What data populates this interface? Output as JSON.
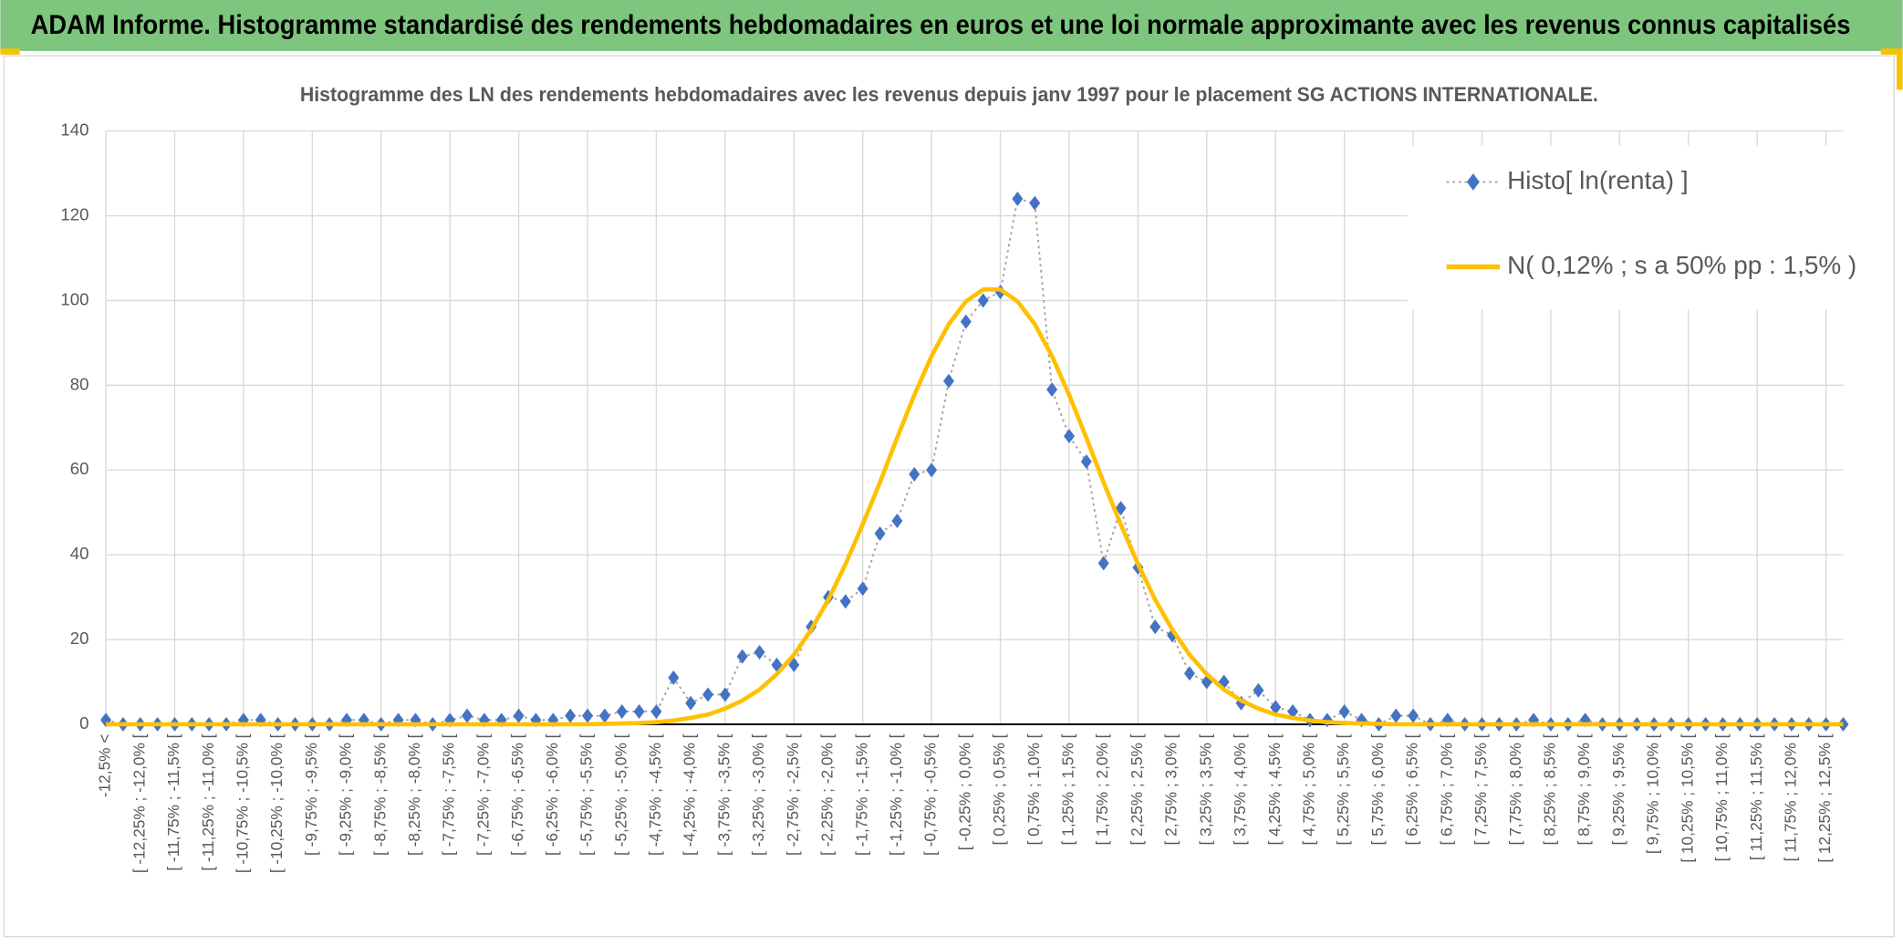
{
  "header": {
    "title": "ADAM Informe. Histogramme standardisé des rendements hebdomadaires en euros et une loi normale approximante avec les revenus connus capitalisés"
  },
  "chart_data": {
    "type": "line",
    "title": "Histogramme des LN des rendements hebdomadaires avec les revenus depuis janv 1997 pour le placement SG ACTIONS INTERNATIONALE.",
    "categories": [
      "-12,5% <",
      null,
      "[ -12,25% ; -12,0% [",
      null,
      "[ -11,75% ; -11,5% [",
      null,
      "[ -11,25% ; -11,0% [",
      null,
      "[ -10,75% ; -10,5% [",
      null,
      "[ -10,25% ; -10,0% [",
      null,
      "[ -9,75% ; -9,5% [",
      null,
      "[ -9,25% ; -9,0% [",
      null,
      "[ -8,75% ; -8,5% [",
      null,
      "[ -8,25% ; -8,0% [",
      null,
      "[ -7,75% ; -7,5% [",
      null,
      "[ -7,25% ; -7,0% [",
      null,
      "[ -6,75% ; -6,5% [",
      null,
      "[ -6,25% ; -6,0% [",
      null,
      "[ -5,75% ; -5,5% [",
      null,
      "[ -5,25% ; -5,0% [",
      null,
      "[ -4,75% ; -4,5% [",
      null,
      "[ -4,25% ; -4,0% [",
      null,
      "[ -3,75% ; -3,5% [",
      null,
      "[ -3,25% ; -3,0% [",
      null,
      "[ -2,75% ; -2,5% [",
      null,
      "[ -2,25% ; -2,0% [",
      null,
      "[ -1,75% ; -1,5% [",
      null,
      "[ -1,25% ; -1,0% [",
      null,
      "[ -0,75% ; -0,5% [",
      null,
      "[ -0,25% ; 0,0% [",
      null,
      "[ 0,25% ; 0,5% [",
      null,
      "[ 0,75% ; 1,0% [",
      null,
      "[ 1,25% ; 1,5% [",
      null,
      "[ 1,75% ; 2,0% [",
      null,
      "[ 2,25% ; 2,5% [",
      null,
      "[ 2,75% ; 3,0% [",
      null,
      "[ 3,25% ; 3,5% [",
      null,
      "[ 3,75% ; 4,0% [",
      null,
      "[ 4,25% ; 4,5% [",
      null,
      "[ 4,75% ; 5,0% [",
      null,
      "[ 5,25% ; 5,5% [",
      null,
      "[ 5,75% ; 6,0% [",
      null,
      "[ 6,25% ; 6,5% [",
      null,
      "[ 6,75% ; 7,0% [",
      null,
      "[ 7,25% ; 7,5% [",
      null,
      "[ 7,75% ; 8,0% [",
      null,
      "[ 8,25% ; 8,5% [",
      null,
      "[ 8,75% ; 9,0% [",
      null,
      "[ 9,25% ; 9,5% [",
      null,
      "[ 9,75% ; 10,0% [",
      null,
      "[ 10,25% ; 10,5% [",
      null,
      "[ 10,75% ; 11,0% [",
      null,
      "[ 11,25% ; 11,5% [",
      null,
      "[ 11,75% ; 12,0% [",
      null,
      "[ 12,25% ; 12,5% [",
      null
    ],
    "series": [
      {
        "name": "Histo[ ln(renta) ]",
        "color": "#4472c4",
        "line_color": "#a5a5a5",
        "values": [
          1,
          0,
          0,
          0,
          0,
          0,
          0,
          0,
          1,
          1,
          0,
          0,
          0,
          0,
          1,
          1,
          0,
          1,
          1,
          0,
          1,
          2,
          1,
          1,
          2,
          1,
          1,
          2,
          2,
          2,
          3,
          3,
          3,
          11,
          5,
          7,
          7,
          16,
          17,
          14,
          14,
          23,
          30,
          29,
          32,
          45,
          48,
          59,
          60,
          81,
          95,
          100,
          102,
          124,
          123,
          79,
          68,
          62,
          38,
          51,
          37,
          23,
          21,
          12,
          10,
          10,
          5,
          8,
          4,
          3,
          1,
          1,
          3,
          1,
          0,
          2,
          2,
          0,
          1,
          0,
          0,
          0,
          0,
          1,
          0,
          0,
          1,
          0,
          0,
          0,
          0,
          0,
          0,
          0,
          0,
          0,
          0,
          0,
          0,
          0,
          0,
          0
        ]
      },
      {
        "name": "N( 0,12% ; s a 50% pp : 1,5% )",
        "color": "#ffc000",
        "values": [
          0,
          0,
          0,
          0,
          0,
          0,
          0,
          0,
          0,
          0,
          0,
          0,
          0,
          0,
          0,
          0,
          0,
          0,
          0,
          0,
          0,
          0,
          0,
          0,
          0,
          0,
          0,
          0,
          0,
          0.1,
          0.2,
          0.3,
          0.5,
          0.9,
          1.5,
          2.3,
          3.7,
          5.6,
          8.2,
          11.8,
          16.4,
          22.3,
          29.4,
          37.8,
          47.2,
          57.1,
          67.6,
          77.7,
          86.9,
          94.4,
          99.8,
          102.6,
          102.6,
          99.8,
          94.4,
          86.9,
          77.7,
          67.6,
          57.1,
          47.2,
          37.8,
          29.4,
          22.3,
          16.4,
          11.8,
          8.2,
          5.6,
          3.7,
          2.3,
          1.5,
          0.9,
          0.5,
          0.3,
          0.2,
          0.1,
          0,
          0,
          0,
          0,
          0,
          0,
          0,
          0,
          0,
          0,
          0,
          0,
          0,
          0,
          0,
          0,
          0,
          0,
          0,
          0,
          0,
          0,
          0,
          0,
          0,
          0,
          0
        ]
      }
    ],
    "ylim": [
      0,
      140
    ],
    "yticks": [
      0,
      20,
      40,
      60,
      80,
      100,
      120,
      140
    ],
    "grid": true,
    "legend": "top-right"
  }
}
